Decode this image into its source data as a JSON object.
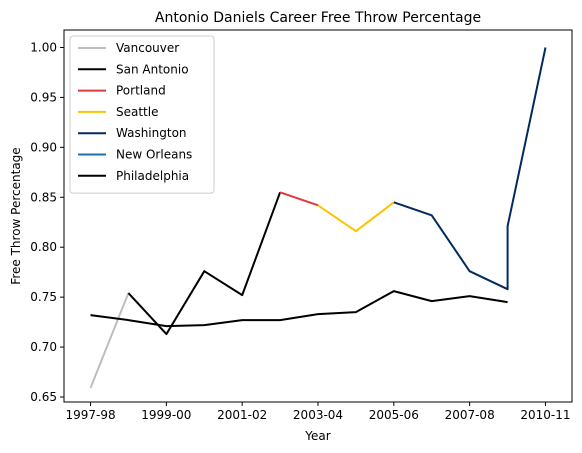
{
  "chart_data": {
    "type": "line",
    "title": "Antonio Daniels Career Free Throw Percentage",
    "xlabel": "Year",
    "ylabel": "Free Throw Percentage",
    "x_tick_labels": [
      "1997-98",
      "1999-00",
      "2001-02",
      "2003-04",
      "2005-06",
      "2007-08",
      "2010-11"
    ],
    "x_tick_positions": [
      0,
      2,
      4,
      6,
      8,
      10,
      12
    ],
    "xlim": [
      -0.7,
      12.7
    ],
    "ylim": [
      0.645,
      1.0175
    ],
    "y_ticks": [
      0.65,
      0.7,
      0.75,
      0.8,
      0.85,
      0.9,
      0.95,
      1.0
    ],
    "y_tick_labels": [
      "0.65",
      "0.70",
      "0.75",
      "0.80",
      "0.85",
      "0.90",
      "0.95",
      "1.00"
    ],
    "legend_position": "upper-left",
    "grid": false,
    "series": [
      {
        "name": "Vancouver",
        "color": "#bebebe",
        "x": [
          0,
          1
        ],
        "y": [
          0.659,
          0.754
        ]
      },
      {
        "name": "San Antonio",
        "color": "#000000",
        "x": [
          1,
          2,
          3,
          4,
          5
        ],
        "y": [
          0.754,
          0.713,
          0.776,
          0.752,
          0.855
        ]
      },
      {
        "name": "Portland",
        "color": "#e03a3e",
        "x": [
          5,
          6
        ],
        "y": [
          0.855,
          0.842
        ]
      },
      {
        "name": "Seattle",
        "color": "#ffc200",
        "x": [
          6,
          7,
          8
        ],
        "y": [
          0.842,
          0.816,
          0.845
        ]
      },
      {
        "name": "Washington",
        "color": "#002b5c",
        "x": [
          8,
          9,
          10,
          11,
          11,
          12
        ],
        "y": [
          0.845,
          0.832,
          0.776,
          0.758,
          0.821,
          1.0
        ]
      },
      {
        "name": "New Orleans",
        "color": "#1d6fa5",
        "x": [],
        "y": []
      },
      {
        "name": "Philadelphia",
        "color": "#000000",
        "x": [
          0,
          1,
          2,
          3,
          4,
          5,
          6,
          7,
          8,
          9,
          10,
          11
        ],
        "y": [
          0.732,
          0.727,
          0.721,
          0.722,
          0.727,
          0.727,
          0.733,
          0.735,
          0.756,
          0.746,
          0.751,
          0.745
        ]
      }
    ]
  }
}
